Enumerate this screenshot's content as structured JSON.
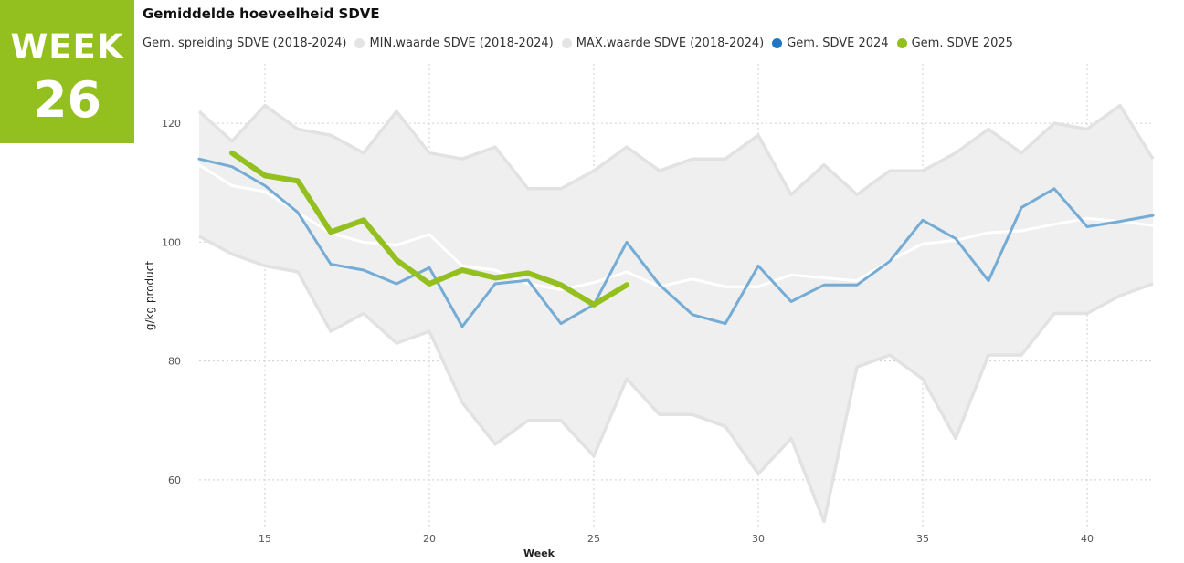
{
  "badge": {
    "line1": "WEEK",
    "line2": "26"
  },
  "chart_data": {
    "type": "line",
    "title": "Gemiddelde hoeveelheid SDVE",
    "xlabel": "Week",
    "ylabel": "g/kg product",
    "xlim": [
      13,
      42
    ],
    "ylim": [
      52,
      130
    ],
    "xticks": [
      15,
      20,
      25,
      30,
      35,
      40
    ],
    "yticks": [
      60,
      80,
      100,
      120
    ],
    "grid": true,
    "legend_position": "top",
    "legend": [
      {
        "label": "Gem. spreiding SDVE (2018-2024)",
        "color": "#ffffff",
        "marker": "none"
      },
      {
        "label": "MIN.waarde SDVE (2018-2024)",
        "color": "#e4e4e4",
        "marker": "dot"
      },
      {
        "label": "MAX.waarde SDVE (2018-2024)",
        "color": "#e4e4e4",
        "marker": "dot"
      },
      {
        "label": "Gem. SDVE 2024",
        "color": "#1f77c4",
        "marker": "dot"
      },
      {
        "label": "Gem. SDVE 2025",
        "color": "#93c01f",
        "marker": "dot"
      }
    ],
    "x": [
      13,
      14,
      15,
      16,
      17,
      18,
      19,
      20,
      21,
      22,
      23,
      24,
      25,
      26,
      27,
      28,
      29,
      30,
      31,
      32,
      33,
      34,
      35,
      36,
      37,
      38,
      39,
      40,
      41,
      42
    ],
    "series": [
      {
        "name": "MIN.waarde SDVE (2018-2024)",
        "color": "#e4e4e4",
        "values": [
          101,
          98,
          96,
          95,
          85,
          88,
          83,
          85,
          73,
          66,
          70,
          70,
          64,
          77,
          71,
          71,
          69,
          61,
          67,
          53,
          79,
          81,
          77,
          67,
          81,
          81,
          88,
          88,
          91,
          93
        ]
      },
      {
        "name": "MAX.waarde SDVE (2018-2024)",
        "color": "#e4e4e4",
        "values": [
          122,
          117,
          123,
          119,
          118,
          115,
          122,
          115,
          114,
          116,
          109,
          109,
          112,
          116,
          112,
          114,
          114,
          118,
          108,
          113,
          108,
          112,
          112,
          115,
          119,
          115,
          120,
          119,
          123,
          114
        ]
      },
      {
        "name": "Gem. spreiding SDVE (2018-2024)",
        "color": "#ffffff",
        "values": [
          113,
          109.5,
          108.5,
          105,
          101.5,
          100,
          99.5,
          101.3,
          96,
          95.3,
          93,
          92,
          93.2,
          95,
          92.5,
          93.8,
          92.5,
          92.5,
          94.5,
          94,
          93.5,
          96.9,
          99.7,
          100.3,
          101.6,
          101.9,
          103,
          104,
          103.5,
          102.8
        ]
      },
      {
        "name": "Gem. SDVE 2024",
        "color": "#74acd6",
        "values": [
          114,
          112.7,
          109.5,
          105,
          96.3,
          95.3,
          93,
          95.7,
          85.8,
          93,
          93.6,
          86.3,
          89.5,
          100,
          92.8,
          87.8,
          86.3,
          96,
          90,
          92.8,
          92.8,
          96.8,
          103.7,
          100.6,
          93.5,
          105.8,
          109,
          102.6,
          103.5,
          104.5
        ]
      },
      {
        "name": "Gem. SDVE 2025",
        "color": "#93c01f",
        "x": [
          14,
          15,
          16,
          17,
          18,
          19,
          20,
          21,
          22,
          23,
          24,
          25,
          26
        ],
        "values": [
          115,
          111.2,
          110.3,
          101.7,
          103.7,
          97,
          93,
          95.3,
          94,
          94.8,
          92.8,
          89.5,
          92.8
        ]
      }
    ]
  }
}
